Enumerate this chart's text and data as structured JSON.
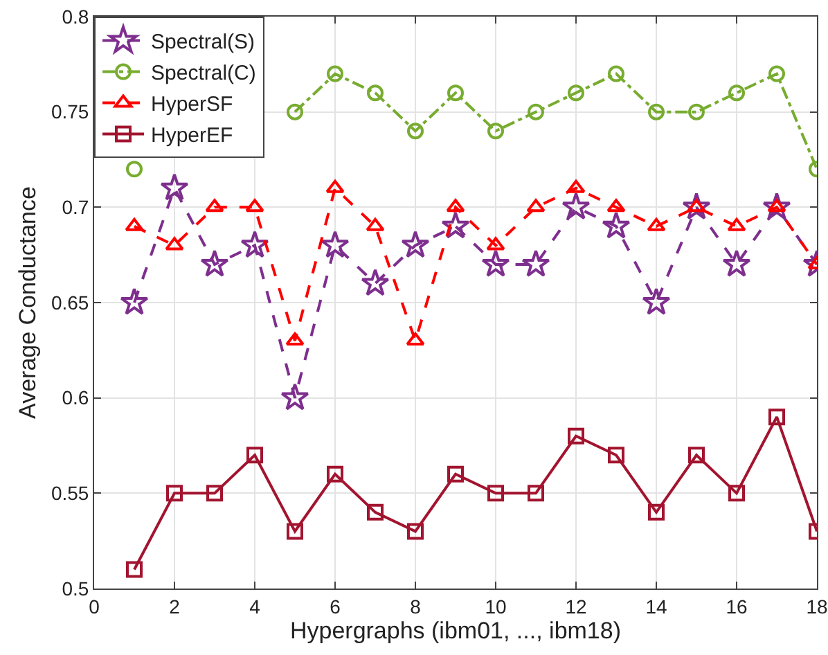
{
  "chart_data": {
    "type": "line",
    "xlabel": "Hypergraphs (ibm01, ..., ibm18)",
    "ylabel": "Average Conductance",
    "x": [
      1,
      2,
      3,
      4,
      5,
      6,
      7,
      8,
      9,
      10,
      11,
      12,
      13,
      14,
      15,
      16,
      17,
      18
    ],
    "series": [
      {
        "name": "Spectral(S)",
        "color": "#7e2f8e",
        "marker": "star",
        "line_style": "dashed",
        "values": [
          0.65,
          0.71,
          0.67,
          0.68,
          0.6,
          0.68,
          0.66,
          0.68,
          0.69,
          0.67,
          0.67,
          0.7,
          0.69,
          0.65,
          0.7,
          0.67,
          0.7,
          0.67
        ]
      },
      {
        "name": "Spectral(C)",
        "color": "#77ac30",
        "marker": "circle",
        "line_style": "dashdot",
        "values": [
          0.72,
          null,
          null,
          null,
          0.75,
          0.77,
          0.76,
          0.74,
          0.76,
          0.74,
          0.75,
          0.76,
          0.77,
          0.75,
          0.75,
          0.76,
          0.77,
          0.72
        ]
      },
      {
        "name": "HyperSF",
        "color": "#ff0000",
        "marker": "triangle",
        "line_style": "dashed",
        "values": [
          0.69,
          0.68,
          0.7,
          0.7,
          0.63,
          0.71,
          0.69,
          0.63,
          0.7,
          0.68,
          0.7,
          0.71,
          0.7,
          0.69,
          0.7,
          0.69,
          0.7,
          0.67
        ]
      },
      {
        "name": "HyperEF",
        "color": "#a2142f",
        "marker": "square",
        "line_style": "solid",
        "values": [
          0.51,
          0.55,
          0.55,
          0.57,
          0.53,
          0.56,
          0.54,
          0.53,
          0.56,
          0.55,
          0.55,
          0.58,
          0.57,
          0.54,
          0.57,
          0.55,
          0.59,
          0.53
        ]
      }
    ],
    "xlim": [
      0,
      18
    ],
    "xticks": [
      0,
      2,
      4,
      6,
      8,
      10,
      12,
      14,
      16,
      18
    ],
    "ylim": [
      0.5,
      0.8
    ],
    "yticks": [
      0.5,
      0.55,
      0.6,
      0.65,
      0.7,
      0.75,
      0.8
    ],
    "grid": true,
    "legend": "top left"
  }
}
